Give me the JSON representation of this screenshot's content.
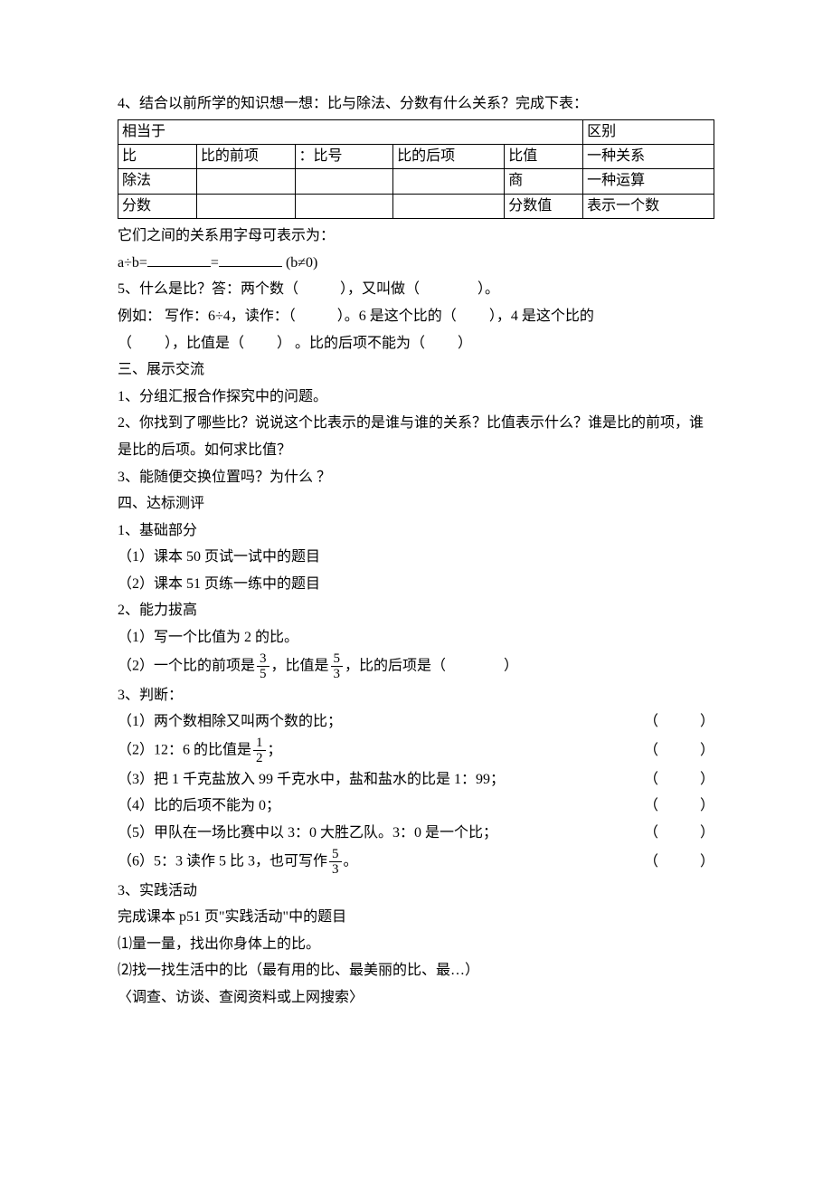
{
  "line_q4_intro": "4、结合以前所学的知识想一想：比与除法、分数有什么关系？完成下表：",
  "table": {
    "r1c1": "相当于",
    "r1c6": "区别",
    "r2c1": "比",
    "r2c2": "比的前项",
    "r2c3": "：比号",
    "r2c4": "比的后项",
    "r2c5": "比值",
    "r2c6": "一种关系",
    "r3c1": "除法",
    "r3c5": "商",
    "r3c6": "一种运算",
    "r4c1": "分数",
    "r4c5": "分数值",
    "r4c6": "表示一个数"
  },
  "line_letter": "它们之间的关系用字母可表示为：",
  "formula_prefix": "a÷b=",
  "formula_eq": "=",
  "formula_suffix": " (b≠0)",
  "q5_a": "5、什么是比？答：两个数（",
  "q5_b": "），又叫做（",
  "q5_c": "）。",
  "q5_line2a": "例如： 写作：6÷4，读作：（",
  "q5_line2b": "）。6 是这个比的（",
  "q5_line2c": "），4 是这个比的",
  "q5_line3a": "（",
  "q5_line3b": "），比值是（",
  "q5_line3c": "） 。比的后项不能为（",
  "q5_line3d": "）",
  "sec3_title": "三、展示交流",
  "sec3_1": "1、分组汇报合作探究中的问题。",
  "sec3_2": "2、你找到了哪些比？说说这个比表示的是谁与谁的关系？比值表示什么？谁是比的前项，谁是比的后项。如何求比值？",
  "sec3_3": "3、能随便交换位置吗？为什么 ？",
  "sec4_title": "四、达标测评",
  "sec4_1": "1、基础部分",
  "sec4_1_1": "（1）课本 50 页试一试中的题目",
  "sec4_1_2": "（2）课本 51 页练一练中的题目",
  "sec4_2": "2、能力拔高",
  "sec4_2_1": "（1）写一个比值为 2 的比。",
  "sec4_2_2a": "（2）一个比的前项是",
  "sec4_2_2b": "，比值是",
  "sec4_2_2c": "，比的后项是（",
  "sec4_2_2d": "）",
  "frac35_n": "3",
  "frac35_d": "5",
  "frac53_n": "5",
  "frac53_d": "3",
  "frac12_n": "1",
  "frac12_d": "2",
  "sec4_3": "3、判断：",
  "j1": "（1）两个数相除又叫两个数的比；",
  "j2a": "（2）12：6 的比值是",
  "j2b": "；",
  "j3": "（3）把 1 千克盐放入 99 千克水中，盐和盐水的比是 1：99；",
  "j4": "（4）比的后项不能为 0；",
  "j5": "（5）甲队在一场比赛中以 3：0 大胜乙队。3：0 是一个比；",
  "j6a": "（6）5：3 读作 5 比 3，也可写作",
  "j6b": "。",
  "paren_l": "（",
  "paren_r": "）",
  "sec4_3b": "3、实践活动",
  "sec4_3b_1": "完成课本 p51 页\"实践活动\"中的题目",
  "sec4_3b_2": "⑴量一量，找出你身体上的比。",
  "sec4_3b_3": "⑵找一找生活中的比（最有用的比、最美丽的比、最…）",
  "sec4_3b_4": "〈调查、访谈、查阅资料或上网搜索〉"
}
